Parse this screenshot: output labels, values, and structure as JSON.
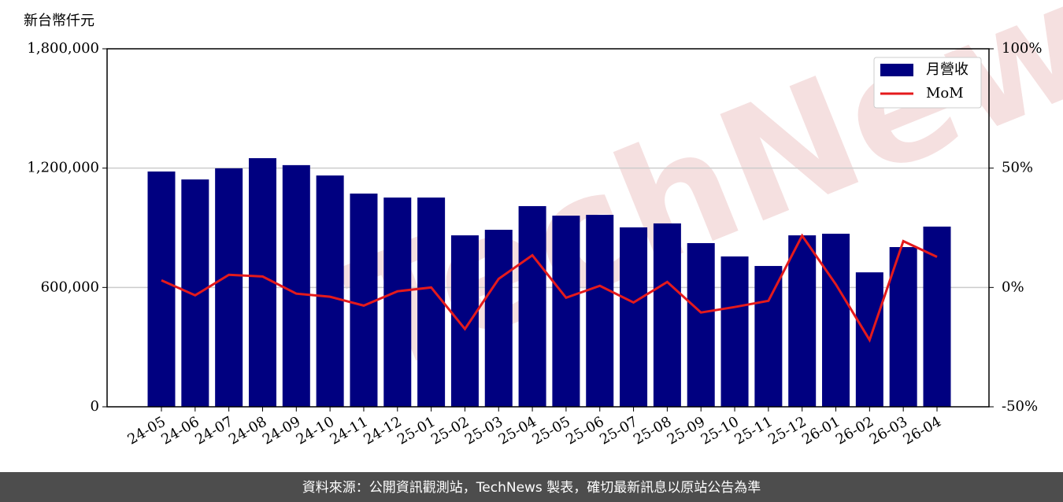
{
  "chart_data": {
    "type": "bar_line",
    "y_label": "新台幣仟元",
    "watermark": "TechNews",
    "footer": "資料來源：公開資訊觀測站，TechNews 製表，確切最新訊息以原站公告為準",
    "categories": [
      "24-05",
      "24-06",
      "24-07",
      "24-08",
      "24-09",
      "24-10",
      "24-11",
      "24-12",
      "25-01",
      "25-02",
      "25-03",
      "25-04",
      "25-05",
      "25-06",
      "25-07",
      "25-08",
      "25-09",
      "25-10",
      "25-11",
      "25-12",
      "26-01",
      "26-02",
      "26-03",
      "26-04"
    ],
    "series": [
      {
        "name": "月營收",
        "type": "bar",
        "color": "#000080",
        "values": [
          1183000,
          1143000,
          1199000,
          1250000,
          1215000,
          1163000,
          1072000,
          1052000,
          1052000,
          862000,
          890000,
          1009000,
          961000,
          965000,
          902000,
          922000,
          823000,
          756000,
          708000,
          862000,
          870000,
          676000,
          803000,
          906000
        ]
      },
      {
        "name": "MoM",
        "type": "line",
        "axis": "y2",
        "color": "#e41a1c",
        "values": [
          3.0,
          -3.3,
          5.3,
          4.6,
          -2.6,
          -3.9,
          -7.6,
          -1.6,
          0,
          -17.4,
          3.6,
          13.5,
          -4.3,
          0.7,
          -6.3,
          2.3,
          -10.5,
          -8.2,
          -5.6,
          21.7,
          1.3,
          -22.0,
          19.4,
          12.8
        ]
      }
    ],
    "ylim": [
      0,
      1800000
    ],
    "yticks": [
      0,
      {
        "value": 600000,
        "label": "600,000"
      },
      {
        "value": 1200000,
        "label": "1,200,000"
      },
      {
        "value": 1800000,
        "label": "1,800,000"
      }
    ],
    "y2lim": [
      -50,
      100
    ],
    "y2ticks": [
      {
        "value": -50,
        "label": "-50%"
      },
      {
        "value": 0,
        "label": "0%"
      },
      {
        "value": 50,
        "label": "50%"
      },
      {
        "value": 100,
        "label": "100%"
      }
    ],
    "grid": true,
    "legend": "upper right"
  }
}
